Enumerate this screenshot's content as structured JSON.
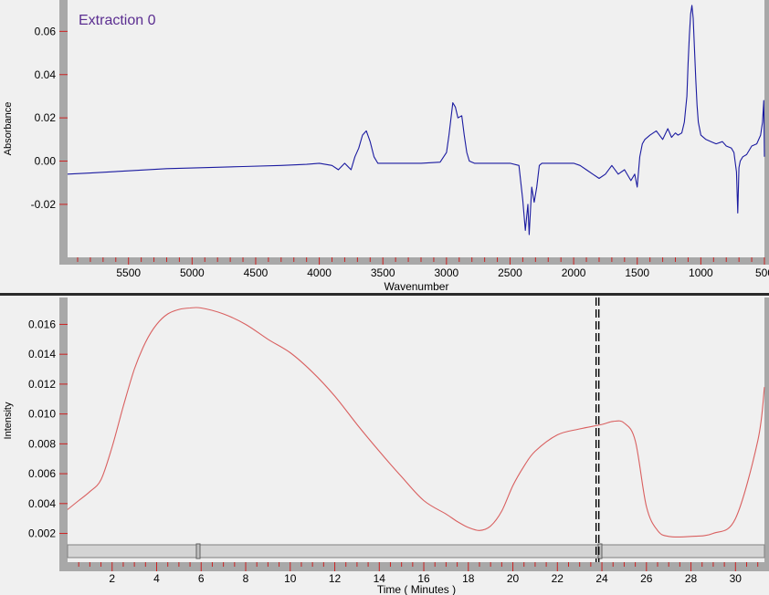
{
  "chart_data": [
    {
      "type": "line",
      "legend_text": "Extraction  0",
      "xlabel": "Wavenumber",
      "ylabel": "Absorbance",
      "x_axis_reversed": true,
      "xlim": [
        5979,
        500
      ],
      "ylim": [
        -0.0445,
        0.0745
      ],
      "x_ticks": [
        5500,
        5000,
        4500,
        4000,
        3500,
        3000,
        2500,
        2000,
        1500,
        1000,
        500
      ],
      "x_tick_labels": [
        "5500",
        "5000",
        "4500",
        "4000",
        "3500",
        "3000",
        "2500",
        "2000",
        "1500",
        "1000",
        "500"
      ],
      "y_ticks": [
        0.06,
        0.04,
        0.02,
        0.0,
        -0.02
      ],
      "y_tick_labels": [
        "0.06",
        "0.04",
        "0.02",
        "0.00",
        "-0.02"
      ],
      "line_color": "#1a1aa0",
      "series": [
        {
          "x": [
            5979,
            5800,
            5500,
            5200,
            4900,
            4600,
            4300,
            4100,
            4000,
            3900,
            3850,
            3800,
            3750,
            3720,
            3690,
            3660,
            3630,
            3600,
            3570,
            3540,
            3500,
            3400,
            3200,
            3050,
            3000,
            2980,
            2960,
            2950,
            2930,
            2910,
            2880,
            2860,
            2840,
            2820,
            2780,
            2700,
            2600,
            2500,
            2430,
            2400,
            2380,
            2360,
            2350,
            2330,
            2310,
            2290,
            2270,
            2250,
            2200,
            2100,
            2000,
            1950,
            1900,
            1850,
            1800,
            1750,
            1700,
            1650,
            1600,
            1550,
            1520,
            1500,
            1480,
            1460,
            1440,
            1400,
            1350,
            1300,
            1260,
            1230,
            1200,
            1180,
            1150,
            1130,
            1110,
            1100,
            1090,
            1080,
            1070,
            1060,
            1050,
            1040,
            1030,
            1020,
            1000,
            960,
            920,
            880,
            830,
            800,
            760,
            740,
            720,
            710,
            700,
            690,
            670,
            640,
            600,
            560,
            530,
            515,
            505,
            500
          ],
          "y": [
            -0.006,
            -0.0055,
            -0.0045,
            -0.0035,
            -0.003,
            -0.0025,
            -0.002,
            -0.0015,
            -0.001,
            -0.002,
            -0.004,
            -0.001,
            -0.004,
            0.002,
            0.006,
            0.012,
            0.014,
            0.009,
            0.002,
            -0.001,
            -0.001,
            -0.001,
            -0.001,
            -0.0005,
            0.004,
            0.012,
            0.022,
            0.027,
            0.025,
            0.02,
            0.021,
            0.012,
            0.004,
            0.0,
            -0.001,
            -0.001,
            -0.001,
            -0.001,
            -0.002,
            -0.018,
            -0.032,
            -0.02,
            -0.034,
            -0.012,
            -0.019,
            -0.012,
            -0.002,
            -0.001,
            -0.001,
            -0.001,
            -0.001,
            -0.002,
            -0.004,
            -0.006,
            -0.008,
            -0.006,
            -0.002,
            -0.006,
            -0.004,
            -0.009,
            -0.006,
            -0.012,
            0.002,
            0.008,
            0.01,
            0.012,
            0.014,
            0.01,
            0.015,
            0.011,
            0.013,
            0.012,
            0.013,
            0.018,
            0.03,
            0.045,
            0.058,
            0.068,
            0.072,
            0.066,
            0.052,
            0.038,
            0.026,
            0.018,
            0.012,
            0.01,
            0.009,
            0.008,
            0.009,
            0.007,
            0.006,
            0.004,
            -0.005,
            -0.024,
            -0.003,
            0.0,
            0.002,
            0.003,
            0.007,
            0.008,
            0.012,
            0.018,
            0.028,
            0.002
          ]
        }
      ]
    },
    {
      "type": "line",
      "xlabel": "Time ( Minutes )",
      "ylabel": "Intensity",
      "xlim": [
        0,
        31.3
      ],
      "ylim": [
        0.0013,
        0.0178
      ],
      "x_ticks": [
        2,
        4,
        6,
        8,
        10,
        12,
        14,
        16,
        18,
        20,
        22,
        24,
        26,
        28,
        30
      ],
      "x_tick_labels": [
        "2",
        "4",
        "6",
        "8",
        "10",
        "12",
        "14",
        "16",
        "18",
        "20",
        "22",
        "24",
        "26",
        "28",
        "30"
      ],
      "y_ticks": [
        0.016,
        0.014,
        0.012,
        0.01,
        0.008,
        0.006,
        0.004,
        0.002
      ],
      "y_tick_labels": [
        "0.016",
        "0.014",
        "0.012",
        "0.010",
        "0.008",
        "0.006",
        "0.004",
        "0.002"
      ],
      "cursor_x": 23.8,
      "line_color": "#d96060",
      "series": [
        {
          "x": [
            0,
            0.5,
            1,
            1.5,
            2,
            2.5,
            3,
            3.5,
            4,
            4.5,
            5,
            5.5,
            6,
            7,
            8,
            9,
            10,
            11,
            12,
            13,
            14,
            15,
            16,
            17,
            17.5,
            18,
            18.5,
            19,
            19.5,
            20,
            20.5,
            21,
            22,
            23,
            24,
            24.5,
            25,
            25.5,
            26,
            26.5,
            27,
            28,
            29,
            30,
            31,
            31.3
          ],
          "y": [
            0.0036,
            0.0042,
            0.0048,
            0.0056,
            0.0078,
            0.0105,
            0.013,
            0.0148,
            0.016,
            0.0167,
            0.017,
            0.0171,
            0.0171,
            0.0167,
            0.016,
            0.015,
            0.0141,
            0.0128,
            0.0112,
            0.0093,
            0.0075,
            0.0058,
            0.0042,
            0.0033,
            0.0028,
            0.0024,
            0.0022,
            0.0025,
            0.0035,
            0.0052,
            0.0065,
            0.0075,
            0.0086,
            0.009,
            0.0093,
            0.0095,
            0.0094,
            0.0082,
            0.0038,
            0.0022,
            0.0018,
            0.0018,
            0.002,
            0.003,
            0.0082,
            0.0118
          ]
        }
      ]
    }
  ]
}
